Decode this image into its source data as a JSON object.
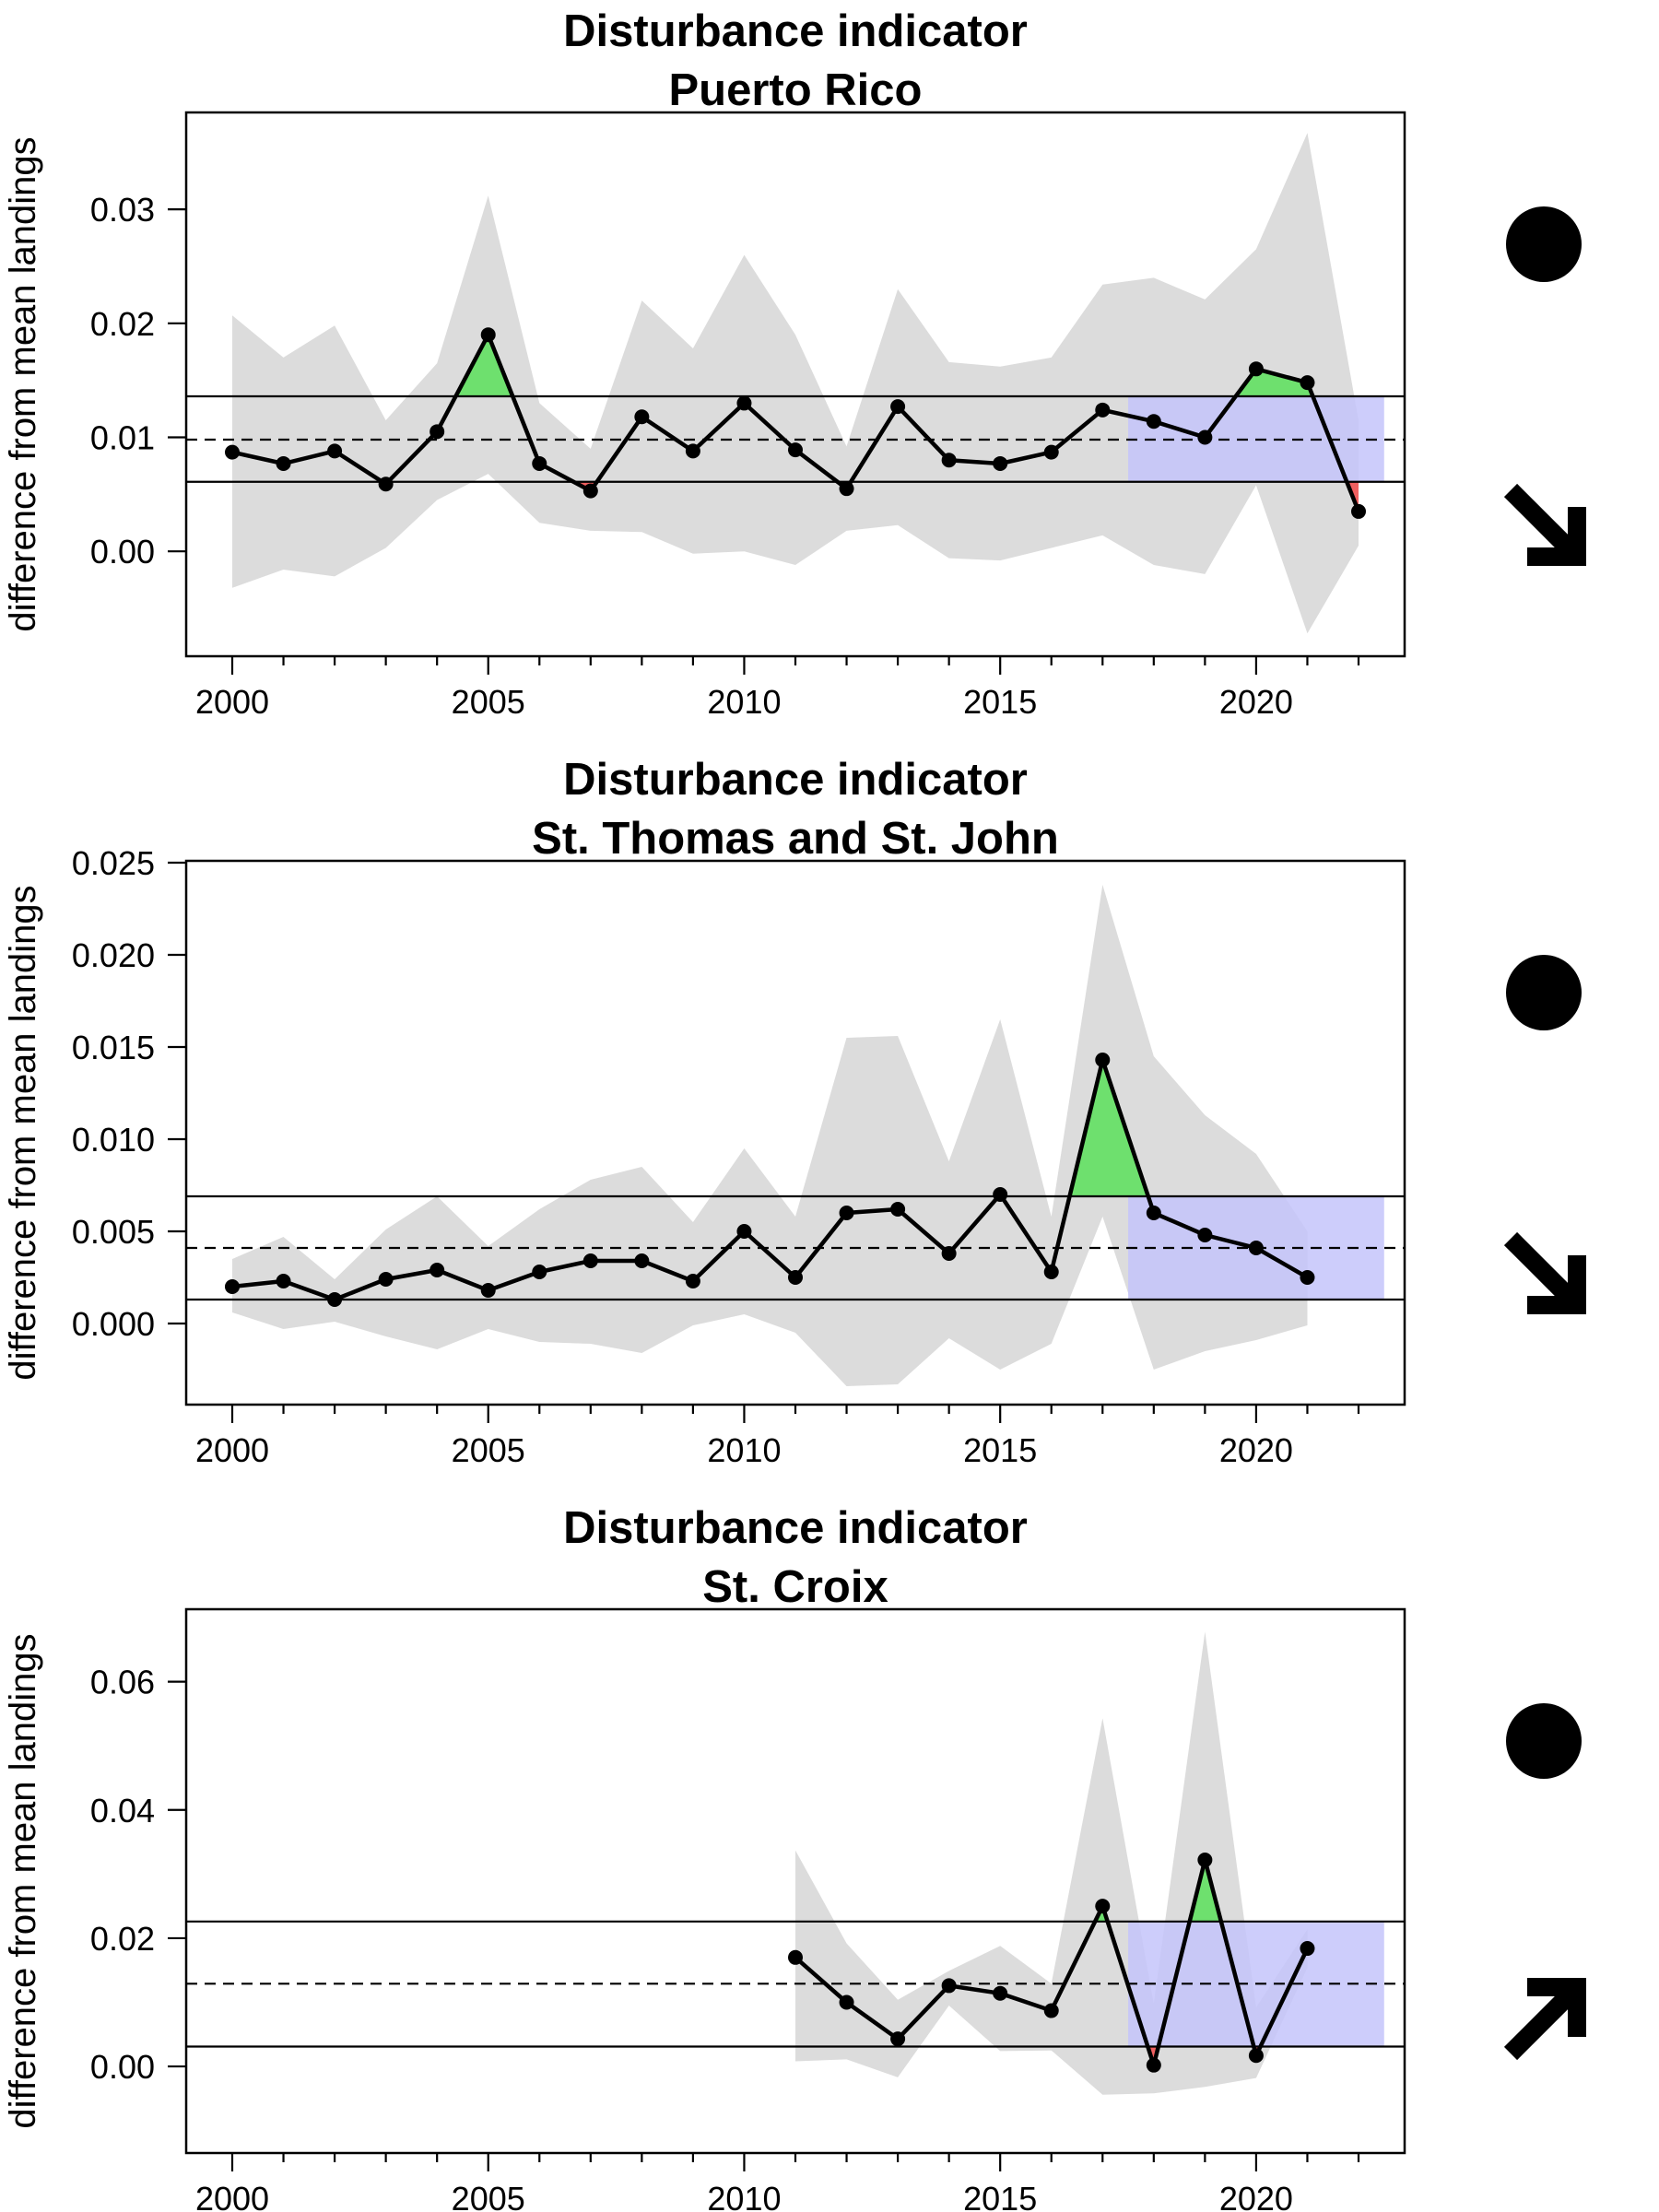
{
  "colors": {
    "band": "#dcdcdc",
    "above": "#6ee06e",
    "below": "#f06060",
    "recent": "#c4c4fa",
    "line": "#000000"
  },
  "chart_data": [
    {
      "type": "line",
      "title": [
        "Disturbance indicator",
        "Puerto Rico"
      ],
      "ylabel": "difference from mean landings",
      "xlim": [
        1999.1,
        2022.9
      ],
      "ylim": [
        -0.0092,
        0.0385
      ],
      "x_ticks": [
        2000,
        2005,
        2010,
        2015,
        2020
      ],
      "y_ticks": [
        "0.00",
        "0.01",
        "0.02",
        "0.03"
      ],
      "grid": false,
      "x": [
        2000,
        2001,
        2002,
        2003,
        2004,
        2005,
        2006,
        2007,
        2008,
        2009,
        2010,
        2011,
        2012,
        2013,
        2014,
        2015,
        2016,
        2017,
        2018,
        2019,
        2020,
        2021,
        2022
      ],
      "values": [
        0.0087,
        0.0077,
        0.0088,
        0.0059,
        0.0105,
        0.019,
        0.0077,
        0.0053,
        0.0118,
        0.0088,
        0.013,
        0.0089,
        0.0055,
        0.0127,
        0.008,
        0.0077,
        0.0087,
        0.0124,
        0.0114,
        0.01,
        0.016,
        0.0148,
        0.0035
      ],
      "upper": [
        0.0207,
        0.017,
        0.0198,
        0.0115,
        0.0165,
        0.0312,
        0.013,
        0.009,
        0.022,
        0.0178,
        0.026,
        0.019,
        0.0092,
        0.023,
        0.0166,
        0.0162,
        0.017,
        0.0234,
        0.024,
        0.0221,
        0.0265,
        0.0367,
        0.0115
      ],
      "lower": [
        -0.0032,
        -0.0016,
        -0.0022,
        0.0003,
        0.0045,
        0.0068,
        0.0025,
        0.0018,
        0.0017,
        -0.0002,
        0.0,
        -0.0012,
        0.0018,
        0.0023,
        -0.0006,
        -0.0008,
        0.0003,
        0.0014,
        -0.0012,
        -0.002,
        0.0058,
        -0.0072,
        0.0005
      ],
      "mean": 0.0098,
      "upper_limit": 0.0136,
      "lower_limit": 0.0061,
      "recent_window": [
        2017.5,
        2022.5
      ],
      "trend_markers": [
        "filled-circle-icon",
        "arrow-down-right-icon"
      ]
    },
    {
      "type": "line",
      "title": [
        "Disturbance indicator",
        "St. Thomas and St. John"
      ],
      "ylabel": "difference from mean landings",
      "xlim": [
        1999.1,
        2022.9
      ],
      "ylim": [
        -0.0044,
        0.0251
      ],
      "x_ticks": [
        2000,
        2005,
        2010,
        2015,
        2020
      ],
      "y_ticks": [
        "0.000",
        "0.005",
        "0.010",
        "0.015",
        "0.020",
        "0.025"
      ],
      "grid": false,
      "x": [
        2000,
        2001,
        2002,
        2003,
        2004,
        2005,
        2006,
        2007,
        2008,
        2009,
        2010,
        2011,
        2012,
        2013,
        2014,
        2015,
        2016,
        2017,
        2018,
        2019,
        2020,
        2021
      ],
      "values": [
        0.002,
        0.0023,
        0.0013,
        0.0024,
        0.0029,
        0.0018,
        0.0028,
        0.0034,
        0.0034,
        0.0023,
        0.005,
        0.0025,
        0.006,
        0.0062,
        0.0038,
        0.007,
        0.0028,
        0.0143,
        0.006,
        0.0048,
        0.0041,
        0.0025
      ],
      "upper": [
        0.0035,
        0.0047,
        0.0024,
        0.0051,
        0.0069,
        0.0042,
        0.0062,
        0.0078,
        0.0085,
        0.0055,
        0.0095,
        0.0058,
        0.0155,
        0.0156,
        0.0088,
        0.0165,
        0.0058,
        0.0238,
        0.0145,
        0.0113,
        0.0092,
        0.005
      ],
      "lower": [
        0.0006,
        -0.0003,
        0.0001,
        -0.0007,
        -0.0014,
        -0.0003,
        -0.001,
        -0.0011,
        -0.0016,
        -0.0001,
        0.0005,
        -0.0005,
        -0.0034,
        -0.0033,
        -0.0008,
        -0.0025,
        -0.0011,
        0.0058,
        -0.0025,
        -0.0015,
        -0.0009,
        -0.0001
      ],
      "mean": 0.0041,
      "upper_limit": 0.0069,
      "lower_limit": 0.0013,
      "recent_window": [
        2017.5,
        2022.5
      ],
      "trend_markers": [
        "filled-circle-icon",
        "arrow-down-right-icon"
      ]
    },
    {
      "type": "line",
      "title": [
        "Disturbance indicator",
        "St. Croix"
      ],
      "ylabel": "difference from mean landings",
      "xlim": [
        1999.1,
        2022.9
      ],
      "ylim": [
        -0.0135,
        0.0713
      ],
      "x_ticks": [
        2000,
        2005,
        2010,
        2015,
        2020
      ],
      "y_ticks": [
        "0.00",
        "0.02",
        "0.04",
        "0.06"
      ],
      "grid": false,
      "x": [
        2011,
        2012,
        2013,
        2014,
        2015,
        2016,
        2017,
        2018,
        2019,
        2020,
        2021
      ],
      "values": [
        0.017,
        0.01,
        0.0043,
        0.0126,
        0.0114,
        0.0087,
        0.025,
        0.0002,
        0.0322,
        0.0017,
        0.0184
      ],
      "upper": [
        0.0337,
        0.0192,
        0.0104,
        0.0149,
        0.0188,
        0.0129,
        0.0543,
        0.0098,
        0.0678,
        0.0092,
        0.0214
      ],
      "lower": [
        0.0008,
        0.0011,
        -0.0017,
        0.0095,
        0.0024,
        0.0025,
        -0.0044,
        -0.0042,
        -0.0032,
        -0.0018,
        0.0154
      ],
      "mean": 0.0129,
      "upper_limit": 0.0226,
      "lower_limit": 0.0031,
      "recent_window": [
        2017.5,
        2022.5
      ],
      "trend_markers": [
        "filled-circle-icon",
        "arrow-up-right-icon"
      ]
    }
  ]
}
